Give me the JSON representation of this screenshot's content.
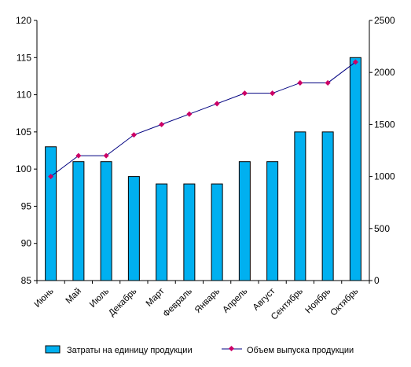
{
  "chart_data": {
    "type": "bar+line",
    "categories": [
      "Июнь",
      "Май",
      "Июль",
      "Декабрь",
      "Март",
      "Февраль",
      "Январь",
      "Апрель",
      "Август",
      "Сентябрь",
      "Ноябрь",
      "Октябрь"
    ],
    "series": [
      {
        "name": "Затраты на единицу продукции",
        "type": "bar",
        "axis": "left",
        "values": [
          103,
          101,
          101,
          99,
          98,
          98,
          98,
          101,
          101,
          105,
          105,
          115
        ]
      },
      {
        "name": "Объем выпуска продукции",
        "type": "line",
        "axis": "right",
        "values": [
          1000,
          1200,
          1200,
          1400,
          1500,
          1600,
          1700,
          1800,
          1800,
          1900,
          1900,
          2100
        ]
      }
    ],
    "y_left": {
      "min": 85,
      "max": 120,
      "step": 5,
      "ticks": [
        "85",
        "90",
        "95",
        "100",
        "105",
        "110",
        "115",
        "120"
      ]
    },
    "y_right": {
      "min": 0,
      "max": 2500,
      "step": 500,
      "ticks": [
        "0",
        "500",
        "1000",
        "1500",
        "2000",
        "2500"
      ]
    },
    "grid": false,
    "legend_position": "bottom",
    "colors": {
      "bar_fill": "#00B0F0",
      "bar_stroke": "#000000",
      "line": "#000080",
      "marker": "#CC0066",
      "axis": "#000000"
    }
  }
}
